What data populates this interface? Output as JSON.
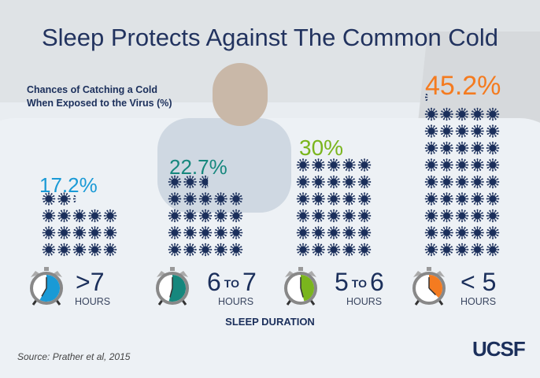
{
  "title": "Sleep Protects Against The Common Cold",
  "chart_data": {
    "type": "bar",
    "ylabel": "Chances of Catching a Cold When Exposed to the Virus (%)",
    "xlabel": "SLEEP DURATION",
    "categories": [
      {
        "main": ">7",
        "to": "",
        "end": "",
        "unit": "HOURS"
      },
      {
        "main": "6",
        "to": "TO",
        "end": "7",
        "unit": "HOURS"
      },
      {
        "main": "5",
        "to": "TO",
        "end": "6",
        "unit": "HOURS"
      },
      {
        "main": "<",
        "to": "",
        "end": "5",
        "unit": "HOURS"
      }
    ],
    "values": [
      17.2,
      22.7,
      30,
      45.2
    ],
    "value_labels": [
      "17.2%",
      "22.7%",
      "30%",
      "45.2%"
    ],
    "colors": [
      "#1a9ad6",
      "#16877d",
      "#7ab51d",
      "#f47b20"
    ],
    "icon": "virus-icon",
    "icon_unit_percent": 1
  },
  "source": "Source: Prather et al, 2015",
  "logo": "UCSF"
}
